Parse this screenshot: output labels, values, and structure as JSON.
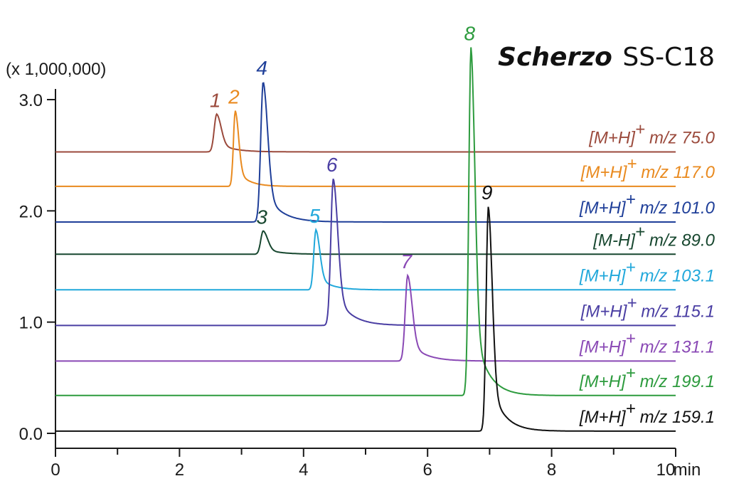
{
  "chart_data": {
    "type": "line",
    "title_italic": "Scherzo",
    "title_rest": "SS-C18",
    "y_unit_label": "(x 1,000,000)",
    "x_unit_label": "min",
    "xlim": [
      0,
      10
    ],
    "ylim": [
      0,
      3.0
    ],
    "x_ticks": [
      0,
      2,
      4,
      6,
      8,
      10
    ],
    "x_tick_labels": [
      "0",
      "2",
      "4",
      "6",
      "8",
      "10"
    ],
    "x_minor_ticks": [
      1,
      3,
      5,
      7,
      9
    ],
    "y_ticks": [
      0.0,
      1.0,
      2.0,
      3.0
    ],
    "y_tick_labels": [
      "0.0",
      "1.0",
      "2.0",
      "3.0"
    ],
    "series": [
      {
        "ion": "[M+H]",
        "charge": "+",
        "mz": "m/z 75.0",
        "color": "#9b4a3c",
        "baseline": 2.53,
        "peaks": [
          {
            "label": "1",
            "rt": 2.6,
            "apex": 2.87,
            "width": 0.04
          }
        ]
      },
      {
        "ion": "[M+H]",
        "charge": "+",
        "mz": "m/z 117.0",
        "color": "#e98a1f",
        "baseline": 2.22,
        "peaks": [
          {
            "label": "2",
            "rt": 2.9,
            "apex": 2.9,
            "width": 0.03
          }
        ]
      },
      {
        "ion": "[M+H]",
        "charge": "+",
        "mz": "m/z 101.0",
        "color": "#1f3f99",
        "baseline": 1.9,
        "peaks": [
          {
            "label": "4",
            "rt": 3.35,
            "apex": 3.16,
            "width": 0.04
          }
        ]
      },
      {
        "ion": "[M-H]",
        "charge": "+",
        "mz": "m/z 89.0",
        "color": "#17472f",
        "baseline": 1.61,
        "peaks": [
          {
            "label": "3",
            "rt": 3.35,
            "apex": 1.82,
            "width": 0.04
          }
        ]
      },
      {
        "ion": "[M+H]",
        "charge": "+",
        "mz": "m/z 103.1",
        "color": "#21a8db",
        "baseline": 1.29,
        "peaks": [
          {
            "label": "5",
            "rt": 4.2,
            "apex": 1.83,
            "width": 0.035
          }
        ]
      },
      {
        "ion": "[M+H]",
        "charge": "+",
        "mz": "m/z 115.1",
        "color": "#4a3ea3",
        "baseline": 0.97,
        "peaks": [
          {
            "label": "6",
            "rt": 4.48,
            "apex": 2.29,
            "width": 0.04
          }
        ]
      },
      {
        "ion": "[M+H]",
        "charge": "+",
        "mz": "m/z 131.1",
        "color": "#8a49b5",
        "baseline": 0.65,
        "peaks": [
          {
            "label": "7",
            "rt": 5.68,
            "apex": 1.42,
            "width": 0.04
          }
        ]
      },
      {
        "ion": "[M+H]",
        "charge": "+",
        "mz": "m/z 199.1",
        "color": "#2d9b3e",
        "baseline": 0.34,
        "peaks": [
          {
            "label": "8",
            "rt": 6.7,
            "apex": 3.47,
            "width": 0.035
          }
        ]
      },
      {
        "ion": "[M+H]",
        "charge": "+",
        "mz": "m/z 159.1",
        "color": "#111111",
        "baseline": 0.02,
        "peaks": [
          {
            "label": "9",
            "rt": 6.98,
            "apex": 2.04,
            "width": 0.035
          }
        ]
      }
    ],
    "grid": false,
    "legend": "right-inline"
  }
}
